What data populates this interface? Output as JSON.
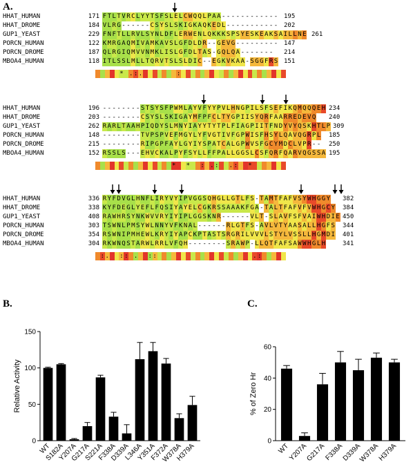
{
  "panel_labels": {
    "a": "A.",
    "b": "B.",
    "c": "C."
  },
  "alignment": {
    "blocks": [
      {
        "rows": [
          {
            "name": "HHAT_HUMAN",
            "start": "171",
            "seq": "FTLTVRCLYYTSFSLELCWQQLPAA------------",
            "end": "195"
          },
          {
            "name": "HHAT_DROME",
            "start": "184",
            "seq": "VLRG------CSYSLSKIGKAQKEDL-----------",
            "end": "202"
          },
          {
            "name": "GUP1_YEAST",
            "start": "229",
            "seq": "FNFTLLRVLSYNLDFLERWENLQKKKSPSYESKEAKSAILLNE",
            "end": "261"
          },
          {
            "name": "PORCN_HUMAN",
            "start": "122",
            "seq": "KMRGAQMIVAMKAVSLGFDLDR--GEVG---------",
            "end": "147"
          },
          {
            "name": "PORCN_DROME",
            "start": "187",
            "seq": "QLRGIQMVVNMKLISLGFDLTAS-GQLQA-------",
            "end": "214"
          },
          {
            "name": "MBOA4_HUMAN",
            "start": "118",
            "seq": "ITLSSLMLLTQRVTSLSLDIC--EGKVKAA-SGGFRS",
            "end": "151"
          }
        ],
        "consensus": "     * .:.       :        "
      },
      {
        "rows": [
          {
            "name": "HHAT_HUMAN",
            "start": "196",
            "seq": "--------STSYSFPWMLAYVFYYPVLHNGPILSFSEFIKQMQQQEH",
            "end": "234"
          },
          {
            "name": "HHAT_DROME",
            "start": "203",
            "seq": "--------CSYSLSKIGAYMFPFCLTYGPIISYQRFAARREDEVQ",
            "end": "240"
          },
          {
            "name": "GUP1_YEAST",
            "start": "262",
            "seq": "RARLTAAHPIQDYSLMNYIAYYTYTPLFIAGPIITFNDYVYQSKHTLP",
            "end": "309"
          },
          {
            "name": "PORCN_HUMAN",
            "start": "148",
            "seq": "--------TVPSPVEFMGYLYFVGTIVFGPWISFHSYLQAVQGRPL",
            "end": "185"
          },
          {
            "name": "PORCN_DROME",
            "start": "215",
            "seq": "--------RIPGPFAYLGYIYSPATCALGPWVSFGCYMDCLVPR--",
            "end": "250"
          },
          {
            "name": "MBOA4_HUMAN",
            "start": "152",
            "seq": "RSSLS---EHVCKALPYFSYLLFFPALLGGSLCSFQRFQARVQGSSA",
            "end": "195"
          }
        ],
        "consensus": "                *  *  : .:  .:  *   "
      },
      {
        "rows": [
          {
            "name": "HHAT_HUMAN",
            "start": "336",
            "seq": "RYFDVGLHNFLIRYVYIPVGGSQHGLLGTLFS-TAMTFAFVSYWHGGY",
            "end": "382"
          },
          {
            "name": "HHAT_DROME",
            "start": "338",
            "seq": "KYFDEGLYEFLFQSIYAYELCGKRSSAAAKFGA-TALTFAFVFVWHGCY",
            "end": "384"
          },
          {
            "name": "GUP1_YEAST",
            "start": "408",
            "seq": "RAWHRSYNKWVVRYIYIPLGGSKNR------VLT-SLAVFSFVAIWHDIE",
            "end": "450"
          },
          {
            "name": "PORCN_HUMAN",
            "start": "303",
            "seq": "TSWNLPMSYWLNNYVFKNAL------RLGTFS-AVLVTYAASALLHGFS",
            "end": "344"
          },
          {
            "name": "PORCN_DROME",
            "start": "354",
            "seq": "RSWNIPMHEWLKRYIYAPCKPTASTSRGRILVVVLSTYLVSSLLHGMDI",
            "end": "401"
          },
          {
            "name": "MBOA4_HUMAN",
            "start": "304",
            "seq": "RKWNQSTARWLRRLVFQH--------SRAWP-LLQTFAFSAWWHGLH",
            "end": "341"
          }
        ],
        "consensus": " :.  :: .  ::                    .:     *.  "
      }
    ]
  },
  "chart_data": [
    {
      "type": "bar",
      "title": "",
      "xlabel": "",
      "ylabel": "Relative Activity",
      "ylim": [
        0,
        150
      ],
      "yticks": [
        "0",
        "50",
        "100",
        "150"
      ],
      "categories": [
        "WT",
        "S182A",
        "Y207A",
        "G217A",
        "S221A",
        "F338A",
        "D339A",
        "L346A",
        "Y351A",
        "F372A",
        "W378A",
        "H379A"
      ],
      "values": [
        100,
        105,
        2,
        20,
        87,
        33,
        10,
        112,
        123,
        106,
        31,
        49
      ],
      "errors": [
        1,
        1,
        1,
        5,
        3,
        6,
        12,
        23,
        12,
        7,
        6,
        12
      ],
      "color": "#000000"
    },
    {
      "type": "bar",
      "title": "",
      "xlabel": "",
      "ylabel": "% of Zero Hr",
      "ylim": [
        0,
        60
      ],
      "yticks": [
        "0",
        "20",
        "40",
        "60"
      ],
      "categories": [
        "WT",
        "Y207A",
        "G217A",
        "F338A",
        "D339A",
        "W378A",
        "H379A"
      ],
      "values": [
        46,
        3,
        36,
        50,
        45,
        53,
        50
      ],
      "errors": [
        2,
        2,
        7,
        7,
        7,
        3,
        2
      ],
      "color": "#000000"
    }
  ]
}
